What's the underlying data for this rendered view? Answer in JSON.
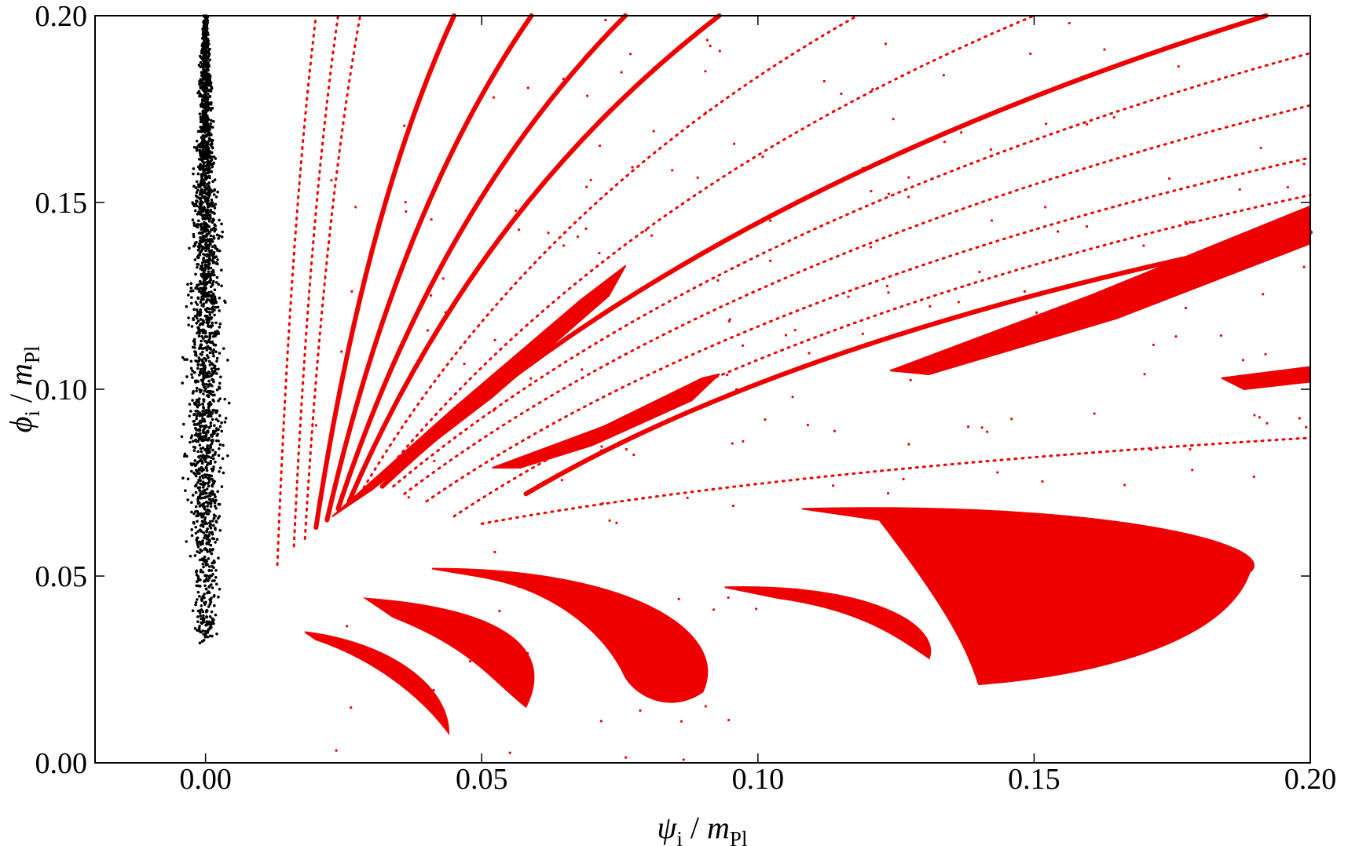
{
  "chart_data": {
    "type": "scatter",
    "title": "",
    "xlabel": {
      "var": "ψ",
      "sub": "i",
      "div": " / ",
      "mass": "m",
      "mass_sub": "Pl"
    },
    "ylabel": {
      "var": "ϕ",
      "sub": "i",
      "div": " / ",
      "mass": "m",
      "mass_sub": "Pl"
    },
    "xlim": [
      -0.02,
      0.2
    ],
    "ylim": [
      0.0,
      0.2
    ],
    "x_ticks": [
      {
        "v": 0.0,
        "label": "0.00"
      },
      {
        "v": 0.05,
        "label": "0.05"
      },
      {
        "v": 0.1,
        "label": "0.10"
      },
      {
        "v": 0.15,
        "label": "0.15"
      },
      {
        "v": 0.2,
        "label": "0.20"
      }
    ],
    "y_ticks": [
      {
        "v": 0.0,
        "label": "0.00"
      },
      {
        "v": 0.05,
        "label": "0.05"
      },
      {
        "v": 0.1,
        "label": "0.10"
      },
      {
        "v": 0.15,
        "label": "0.15"
      },
      {
        "v": 0.2,
        "label": "0.20"
      }
    ],
    "grid": false,
    "series": [
      {
        "color": "#000000",
        "region": "narrow vertical cloud",
        "x_center": 0.0,
        "x_spread": [
          -0.004,
          0.004
        ],
        "y_range": [
          0.032,
          0.2
        ]
      },
      {
        "color": "#ee0000",
        "fans": [
          {
            "from": [
              0.013,
              0.053
            ],
            "to": [
              0.02,
              0.2
            ],
            "type": "dots"
          },
          {
            "from": [
              0.016,
              0.058
            ],
            "to": [
              0.024,
              0.2
            ],
            "type": "dots"
          },
          {
            "from": [
              0.018,
              0.06
            ],
            "to": [
              0.028,
              0.2
            ],
            "type": "dots"
          },
          {
            "from": [
              0.02,
              0.063
            ],
            "to": [
              0.045,
              0.2
            ],
            "type": "band"
          },
          {
            "from": [
              0.022,
              0.065
            ],
            "to": [
              0.059,
              0.2
            ],
            "type": "band"
          },
          {
            "from": [
              0.024,
              0.068
            ],
            "to": [
              0.076,
              0.2
            ],
            "type": "band"
          },
          {
            "from": [
              0.026,
              0.07
            ],
            "to": [
              0.093,
              0.2
            ],
            "type": "band"
          },
          {
            "from": [
              0.028,
              0.072
            ],
            "to": [
              0.118,
              0.2
            ],
            "type": "dots"
          },
          {
            "from": [
              0.03,
              0.073
            ],
            "to": [
              0.15,
              0.2
            ],
            "type": "dots"
          },
          {
            "from": [
              0.032,
              0.074
            ],
            "to": [
              0.192,
              0.2
            ],
            "type": "band"
          },
          {
            "from": [
              0.034,
              0.074
            ],
            "to": [
              0.2,
              0.19
            ],
            "type": "dots"
          },
          {
            "from": [
              0.036,
              0.072
            ],
            "to": [
              0.2,
              0.176
            ],
            "type": "dots"
          },
          {
            "from": [
              0.04,
              0.07
            ],
            "to": [
              0.2,
              0.162
            ],
            "type": "dots"
          },
          {
            "from": [
              0.045,
              0.066
            ],
            "to": [
              0.2,
              0.152
            ],
            "type": "dots"
          },
          {
            "from": [
              0.058,
              0.072
            ],
            "to": [
              0.2,
              0.142
            ],
            "type": "band"
          },
          {
            "from": [
              0.05,
              0.064
            ],
            "to": [
              0.2,
              0.087
            ],
            "type": "dots"
          }
        ],
        "lobes": [
          {
            "x": [
              0.023,
              0.076
            ],
            "y": [
              0.065,
              0.133
            ]
          },
          {
            "x": [
              0.052,
              0.093
            ],
            "y": [
              0.079,
              0.104
            ]
          },
          {
            "x": [
              0.124,
              0.2
            ],
            "y": [
              0.104,
              0.149
            ]
          },
          {
            "x": [
              0.184,
              0.2
            ],
            "y": [
              0.1,
              0.106
            ]
          },
          {
            "x": [
              0.018,
              0.044
            ],
            "y": [
              0.008,
              0.035
            ]
          },
          {
            "x": [
              0.028,
              0.056
            ],
            "y": [
              0.015,
              0.045
            ]
          },
          {
            "x": [
              0.044,
              0.093
            ],
            "y": [
              0.015,
              0.053
            ]
          },
          {
            "x": [
              0.083,
              0.131
            ],
            "y": [
              0.015,
              0.055
            ]
          },
          {
            "x": [
              0.108,
              0.189
            ],
            "y": [
              0.021,
              0.069
            ]
          }
        ]
      }
    ]
  }
}
